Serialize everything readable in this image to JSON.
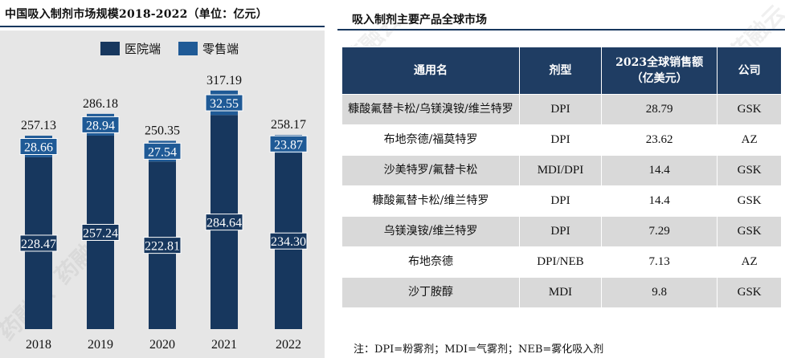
{
  "left": {
    "title": "中国吸入制剂市场规模2018-2022（单位：亿元）"
  },
  "right": {
    "title": "吸入制剂主要产品全球市场",
    "headers": [
      "通用名",
      "剂型",
      "2023全球销售额（亿美元）",
      "公司"
    ],
    "rows": [
      [
        "糠酸氟替卡松/乌镁溴铵/维兰特罗",
        "DPI",
        "28.79",
        "GSK"
      ],
      [
        "布地奈德/福莫特罗",
        "DPI",
        "23.62",
        "AZ"
      ],
      [
        "沙美特罗/氟替卡松",
        "MDI/DPI",
        "14.4",
        "GSK"
      ],
      [
        "糠酸氟替卡松/维兰特罗",
        "DPI",
        "14.4",
        "GSK"
      ],
      [
        "乌镁溴铵/维兰特罗",
        "DPI",
        "7.29",
        "GSK"
      ],
      [
        "布地奈德",
        "DPI/NEB",
        "7.13",
        "AZ"
      ],
      [
        "沙丁胺醇",
        "MDI",
        "9.8",
        "GSK"
      ]
    ],
    "note": "注：DPI=粉雾剂；MDI=气雾剂；NEB=雾化吸入剂"
  },
  "watermark": "药融云",
  "colors": {
    "hospital": "#17375e",
    "retail": "#1f5a96",
    "header": "#1f3d63",
    "chart_bg": "#e6e6e6"
  },
  "chart_data": {
    "type": "bar",
    "stacked": true,
    "categories": [
      "2018",
      "2019",
      "2020",
      "2021",
      "2022"
    ],
    "series": [
      {
        "name": "医院端",
        "values": [
          228.47,
          257.24,
          222.81,
          284.64,
          234.3
        ],
        "labels": [
          "228.47",
          "257.24",
          "222.81",
          "284.64",
          "234.30"
        ]
      },
      {
        "name": "零售端",
        "values": [
          28.66,
          28.94,
          27.54,
          32.55,
          23.87
        ],
        "labels": [
          "28.66",
          "28.94",
          "27.54",
          "32.55",
          "23.87"
        ]
      }
    ],
    "totals": [
      "257.13",
      "286.18",
      "250.35",
      "317.19",
      "258.17"
    ],
    "legend": "top",
    "grid": false
  }
}
